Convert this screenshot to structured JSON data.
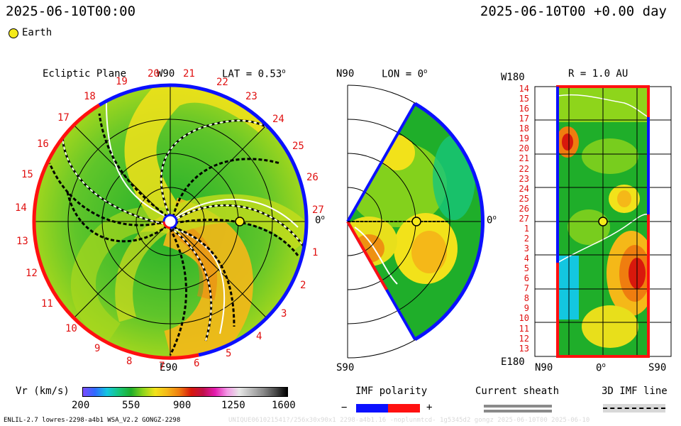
{
  "header": {
    "datetime_left": "2025-06-10T00:00",
    "datetime_right": "2025-06-10T00 +0.00 day",
    "earth_legend": "Earth"
  },
  "ecliptic": {
    "title": "Ecliptic Plane",
    "top_label": "W90",
    "bottom_label": "E90",
    "zero_label": "0",
    "lat_label": "LAT = 0.53",
    "carrington_labels": [
      "19",
      "20",
      "21",
      "22",
      "23",
      "24",
      "25",
      "26",
      "27",
      "1",
      "2",
      "3",
      "4",
      "5",
      "6",
      "7",
      "8",
      "9",
      "10",
      "11",
      "12",
      "13",
      "14",
      "15",
      "16",
      "17",
      "18"
    ]
  },
  "meridional": {
    "top_label": "N90",
    "bottom_label": "S90",
    "lon_label": "LON = 0",
    "zero_label": "0"
  },
  "latlon": {
    "title": "R = 1.0 AU",
    "top_left_label": "W180",
    "bottom_left_label": "E180",
    "x_labels": [
      "N90",
      "0",
      "S90"
    ],
    "y_labels": [
      "14",
      "15",
      "16",
      "17",
      "18",
      "19",
      "20",
      "21",
      "22",
      "23",
      "24",
      "25",
      "26",
      "27",
      "1",
      "2",
      "3",
      "4",
      "5",
      "6",
      "7",
      "8",
      "9",
      "10",
      "11",
      "12",
      "13"
    ]
  },
  "colorbar": {
    "label": "Vr (km/s)",
    "ticks": [
      "200",
      "550",
      "900",
      "1250",
      "1600"
    ],
    "colors": [
      "#7a4cff",
      "#2f6bff",
      "#13c7e0",
      "#17c67a",
      "#1fae2a",
      "#8ed51b",
      "#f2e21a",
      "#f5b818",
      "#ef7d0f",
      "#d8180c",
      "#c0104a",
      "#e41bb0",
      "#f299e6",
      "#e7e7e7",
      "#b9b9b9",
      "#8a8a8a",
      "#4a4a4a",
      "#000000"
    ]
  },
  "legends": {
    "imf_polarity": "IMF polarity",
    "minus": "−",
    "plus": "+",
    "current_sheath": "Current sheath",
    "imf_line": "3D IMF line",
    "polarity_colors": [
      "#0b10ff",
      "#ff1010"
    ]
  },
  "footer": {
    "model_info": "ENLIL-2.7 lowres-2298-a4b1 WSA_V2.2 GONGZ-2298",
    "watermark": "UNIQUE061021541?/256x30x90x1 2298-a4b1.16 -noplunmtcd- 1g5345d2 gongz 2025-06-10T00   2025-06-10"
  }
}
